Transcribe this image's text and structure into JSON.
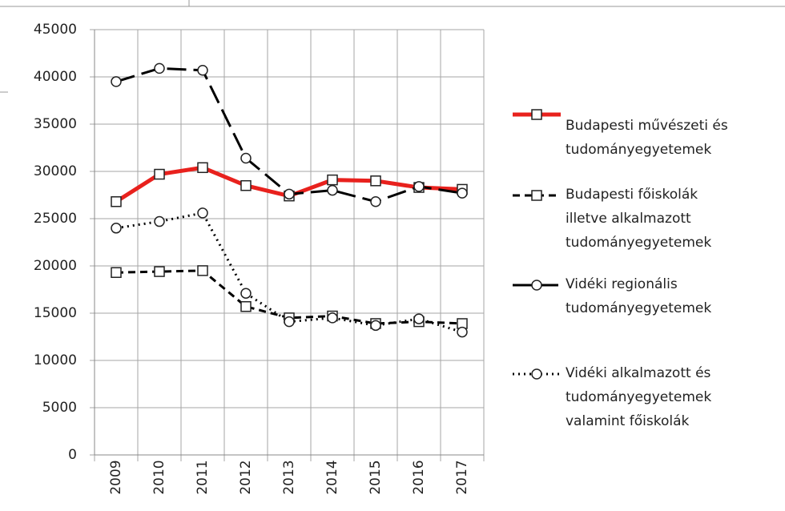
{
  "chart_data": {
    "type": "line",
    "categories": [
      "2009",
      "2010",
      "2011",
      "2012",
      "2013",
      "2014",
      "2015",
      "2016",
      "2017"
    ],
    "ylim": [
      0,
      45000
    ],
    "yticks": [
      0,
      5000,
      10000,
      15000,
      20000,
      25000,
      30000,
      35000,
      40000,
      45000
    ],
    "grid": true,
    "legend": "right",
    "series": [
      {
        "name": "Budapesti művészeti és tudományegyetemek",
        "color": "#e8211d",
        "dash": "none",
        "width": 5,
        "marker": "square",
        "values": [
          26800,
          29700,
          30400,
          28500,
          27400,
          29100,
          29000,
          28300,
          28100
        ]
      },
      {
        "name": "Budapesti főiskolák illetve alkalmazott tudományegyetemek",
        "color": "#000000",
        "dash": "9,6",
        "width": 3,
        "marker": "square",
        "values": [
          19300,
          19400,
          19500,
          15700,
          14500,
          14700,
          13900,
          14100,
          13900
        ]
      },
      {
        "name": "Vidéki regionális tudományegyetemek",
        "color": "#000000",
        "dash": "24,9",
        "width": 3,
        "marker": "circle",
        "values": [
          39500,
          40900,
          40700,
          31400,
          27600,
          28000,
          26800,
          28400,
          27700
        ]
      },
      {
        "name": "Vidéki alkalmazott és tudományegyetemek valamint főiskolák",
        "color": "#000000",
        "dash": "2,5",
        "width": 3,
        "marker": "circle",
        "values": [
          24000,
          24700,
          25600,
          17100,
          14100,
          14500,
          13700,
          14400,
          13000
        ]
      }
    ]
  }
}
